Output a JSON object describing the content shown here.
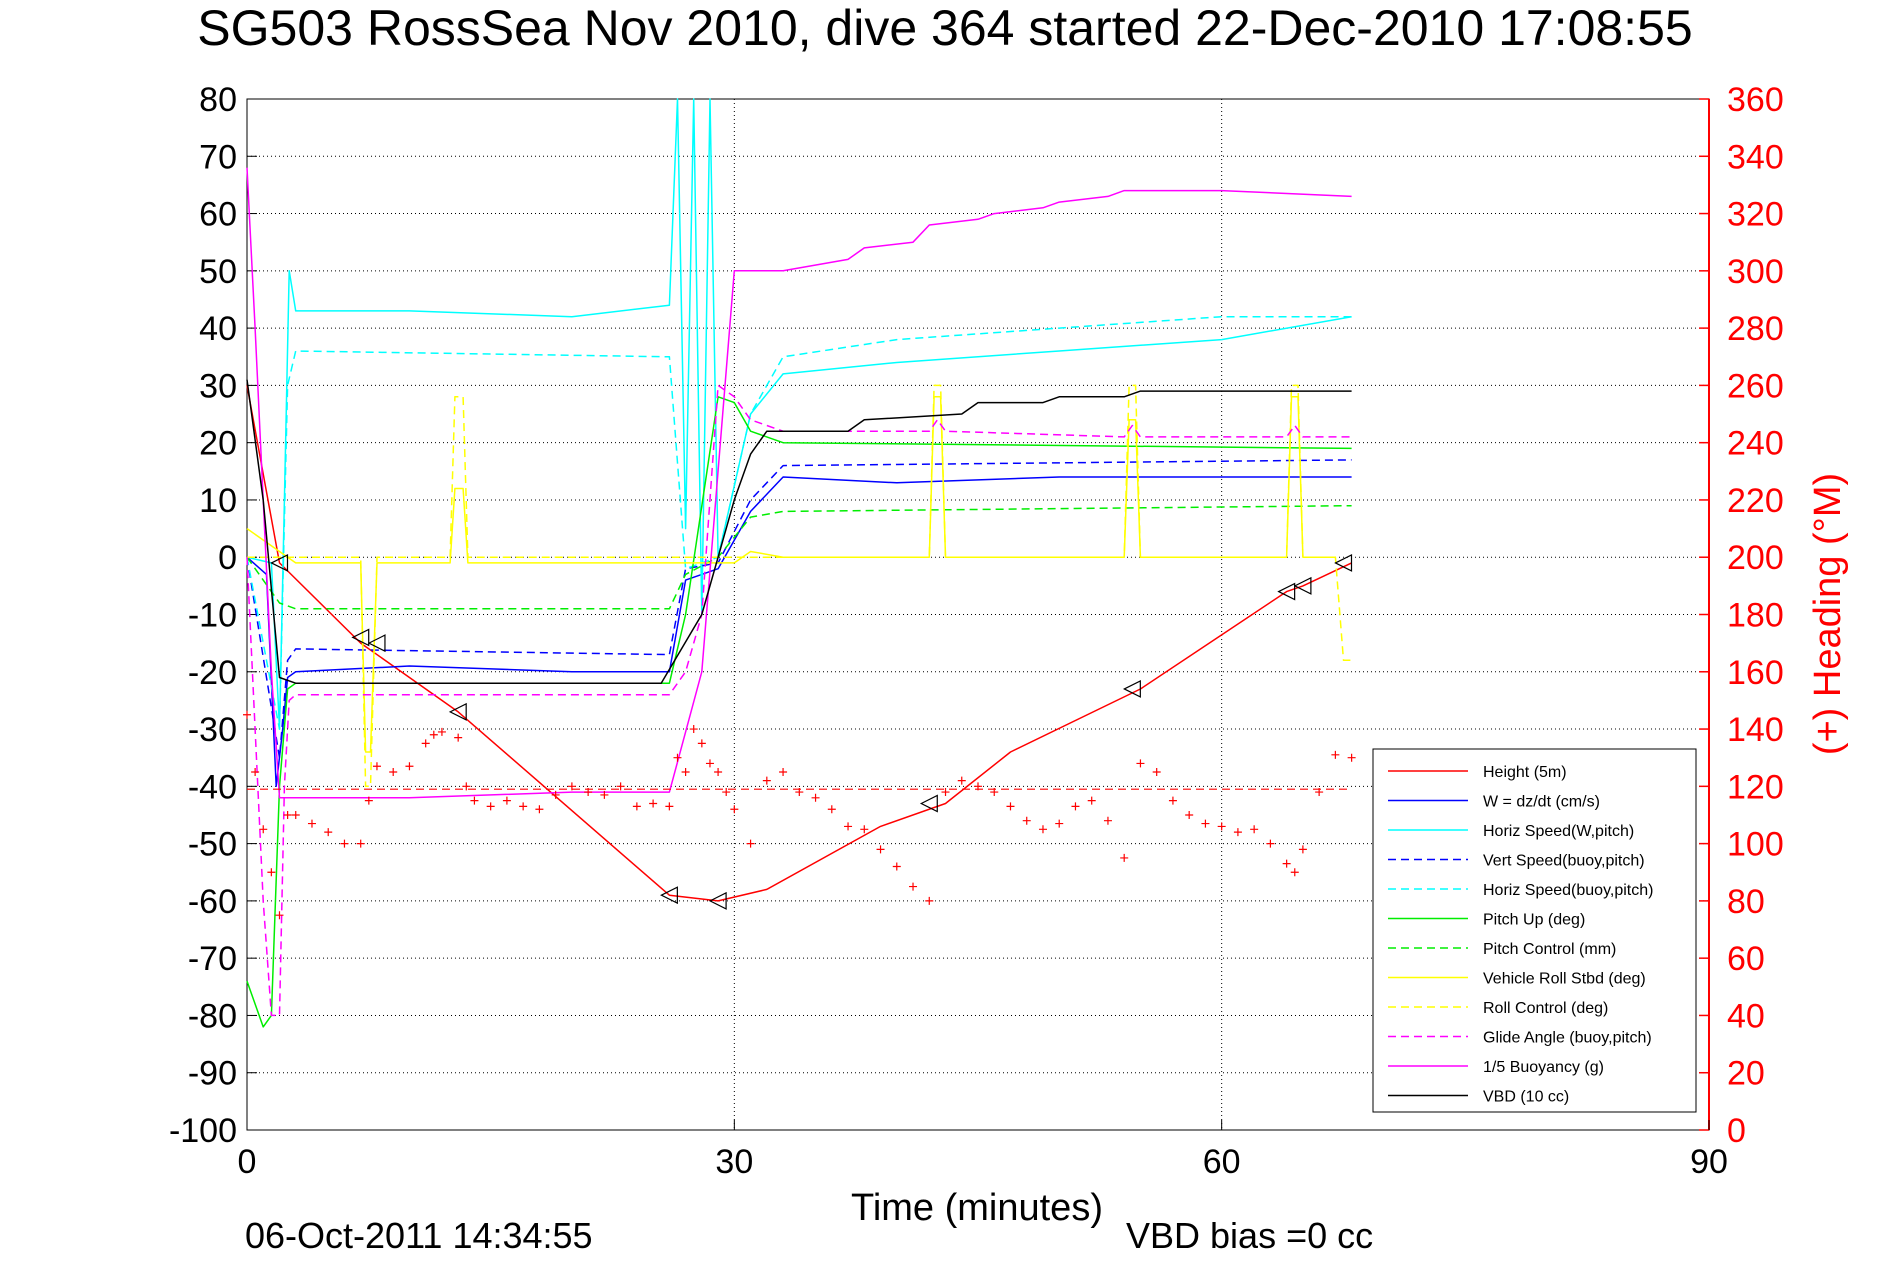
{
  "chart_data": {
    "type": "line",
    "title": "SG503 RossSea Nov 2010, dive 364 started 22-Dec-2010 17:08:55",
    "xlabel": "Time (minutes)",
    "ylabel_left": "",
    "ylabel_right": "(+) Heading (°M)",
    "footer_date": "06-Oct-2011 14:34:55",
    "footer_note": "VBD bias =0 cc",
    "xlim": [
      0,
      90
    ],
    "ylim": [
      -100,
      80
    ],
    "ylim_right": [
      0,
      360
    ],
    "xticks": [
      "0",
      "30",
      "60",
      "90"
    ],
    "yticks": [
      "80",
      "70",
      "60",
      "50",
      "40",
      "30",
      "20",
      "10",
      "0",
      "-10",
      "-20",
      "-30",
      "-40",
      "-50",
      "-60",
      "-70",
      "-80",
      "-90",
      "-100"
    ],
    "yticks_right": [
      "360",
      "340",
      "320",
      "300",
      "280",
      "260",
      "240",
      "220",
      "200",
      "180",
      "160",
      "140",
      "120",
      "100",
      "80",
      "60",
      "40",
      "20",
      "0"
    ],
    "grid": true,
    "legend_position": "bottom-right",
    "series": [
      {
        "name": "Height (5m)",
        "color": "#ff0000",
        "dash": "solid",
        "x": [
          0,
          2,
          7,
          13,
          26,
          29,
          32,
          39,
          43,
          47,
          55,
          64,
          65,
          68
        ],
        "y": [
          30,
          -1,
          -15,
          -27,
          -59,
          -60,
          -58,
          -47,
          -43,
          -34,
          -23,
          -6,
          -5,
          -1
        ]
      },
      {
        "name": "W = dz/dt (cm/s)",
        "color": "#0000ff",
        "dash": "solid",
        "x": [
          0,
          1.2,
          1.8,
          2.2,
          2.5,
          3,
          10,
          20,
          26,
          27,
          28,
          29,
          31,
          33,
          40,
          50,
          60,
          68
        ],
        "y": [
          0,
          -3,
          -40,
          -30,
          -21,
          -20,
          -19,
          -20,
          -20,
          -4,
          -3,
          -2,
          8,
          14,
          13,
          14,
          14,
          14
        ]
      },
      {
        "name": "Horiz Speed(W,pitch)",
        "color": "#00ffff",
        "dash": "solid",
        "x": [
          0,
          1.5,
          2,
          2.3,
          2.6,
          3,
          10,
          20,
          26,
          26.5,
          27,
          27.5,
          28,
          28.5,
          29,
          31,
          33,
          40,
          50,
          60,
          68
        ],
        "y": [
          0,
          -1,
          -30,
          10,
          50,
          43,
          43,
          42,
          44,
          80,
          5,
          80,
          -10,
          80,
          0,
          25,
          32,
          34,
          36,
          38,
          42
        ]
      },
      {
        "name": "Vert Speed(buoy,pitch)",
        "color": "#0000ff",
        "dash": "dashed",
        "x": [
          0,
          2,
          2.5,
          3,
          26,
          27,
          29,
          31,
          33,
          68
        ],
        "y": [
          0,
          -35,
          -18,
          -16,
          -17,
          -2,
          -1,
          10,
          16,
          17
        ]
      },
      {
        "name": "Horiz Speed(buoy,pitch)",
        "color": "#00ffff",
        "dash": "dashed",
        "x": [
          0,
          2,
          2.5,
          3,
          26,
          27,
          29,
          31,
          33,
          40,
          50,
          60,
          68
        ],
        "y": [
          0,
          -30,
          30,
          36,
          35,
          -2,
          0,
          25,
          35,
          38,
          40,
          42,
          42
        ]
      },
      {
        "name": "Pitch Up (deg)",
        "color": "#00ee00",
        "dash": "solid",
        "x": [
          0,
          0.5,
          1,
          1.5,
          2,
          2.5,
          3,
          10,
          20,
          26,
          27,
          29,
          30,
          31,
          33,
          68
        ],
        "y": [
          -74,
          -78,
          -82,
          -80,
          -40,
          -23,
          -22,
          -22,
          -22,
          -22,
          -10,
          28,
          27,
          22,
          20,
          19
        ]
      },
      {
        "name": "Pitch Control (mm)",
        "color": "#00ee00",
        "dash": "dashed",
        "x": [
          0,
          2,
          3,
          26,
          27,
          29,
          31,
          33,
          68
        ],
        "y": [
          0,
          -8,
          -9,
          -9,
          -3,
          0,
          7,
          8,
          9
        ]
      },
      {
        "name": "Vehicle Roll Stbd (deg)",
        "color": "#ffff00",
        "dash": "solid",
        "x": [
          0,
          2,
          3,
          7,
          7.3,
          7.6,
          8,
          12.5,
          12.8,
          13.3,
          13.6,
          20,
          26,
          28,
          30,
          31,
          33,
          42,
          42.3,
          42.7,
          43,
          54,
          54.3,
          54.7,
          55,
          64,
          64.3,
          64.7,
          65,
          67
        ],
        "y": [
          5,
          1,
          -1,
          -1,
          -34,
          -34,
          -1,
          -1,
          12,
          12,
          -1,
          -1,
          -1,
          -1,
          -1,
          1,
          0,
          0,
          28,
          28,
          0,
          0,
          24,
          24,
          0,
          0,
          28,
          28,
          0,
          0
        ]
      },
      {
        "name": "Roll Control (deg)",
        "color": "#ffff00",
        "dash": "dashed",
        "x": [
          0,
          2,
          3,
          7,
          7.3,
          7.6,
          8,
          12.5,
          12.8,
          13.3,
          13.6,
          26,
          28,
          30,
          33,
          42,
          42.3,
          42.7,
          43,
          54,
          54.3,
          54.7,
          55,
          64,
          64.3,
          64.7,
          65,
          67,
          67.5,
          68
        ],
        "y": [
          0,
          0,
          0,
          0,
          -40,
          -40,
          0,
          0,
          28,
          28,
          0,
          0,
          0,
          0,
          0,
          0,
          30,
          30,
          0,
          0,
          30,
          30,
          0,
          0,
          30,
          30,
          0,
          0,
          -18,
          -18
        ]
      },
      {
        "name": "Glide Angle (buoy,pitch)",
        "color": "#ff00ff",
        "dash": "dashed",
        "x": [
          0,
          1,
          1.5,
          2,
          2.3,
          2.6,
          3,
          10,
          20,
          26,
          27,
          28,
          29,
          30,
          31,
          33,
          42,
          42.5,
          43,
          54,
          54.5,
          55,
          64,
          64.5,
          65,
          68
        ],
        "y": [
          0,
          -60,
          -80,
          -80,
          -40,
          -25,
          -24,
          -24,
          -24,
          -24,
          -20,
          -10,
          30,
          28,
          24,
          22,
          22,
          24,
          22,
          21,
          23,
          21,
          21,
          23,
          21,
          21
        ]
      },
      {
        "name": "1/5 Buoyancy (g)",
        "color": "#ff00ff",
        "dash": "solid",
        "x": [
          0,
          0.5,
          1,
          1.5,
          2,
          3,
          10,
          20,
          26,
          28,
          30,
          31,
          33,
          37,
          38,
          41,
          42,
          45,
          46,
          49,
          50,
          53,
          54,
          60,
          68
        ],
        "y": [
          68,
          40,
          10,
          -20,
          -42,
          -42,
          -42,
          -41,
          -41,
          -20,
          50,
          50,
          50,
          52,
          54,
          55,
          58,
          59,
          60,
          61,
          62,
          63,
          64,
          64,
          63
        ]
      },
      {
        "name": "VBD (10 cc)",
        "color": "#000000",
        "dash": "solid",
        "x": [
          0,
          1,
          2,
          3,
          10,
          20,
          25.5,
          28,
          29,
          30,
          31,
          32,
          33,
          37,
          38,
          44,
          45,
          49,
          50,
          54,
          55,
          68
        ],
        "y": [
          31,
          10,
          -21,
          -22,
          -22,
          -22,
          -22,
          -10,
          0,
          10,
          18,
          22,
          22,
          22,
          24,
          25,
          27,
          27,
          28,
          28,
          29,
          29
        ]
      }
    ],
    "heading_series": {
      "name": "(+) Heading (°M)",
      "color": "#ff0000",
      "marker": "+",
      "reference_heading": 119,
      "x": [
        0,
        0.5,
        1,
        1.5,
        2,
        2.5,
        3,
        4,
        5,
        6,
        7,
        7.5,
        8,
        9,
        10,
        11,
        11.5,
        12,
        13,
        13.5,
        14,
        15,
        16,
        17,
        18,
        19,
        20,
        21,
        22,
        23,
        24,
        25,
        26,
        26.5,
        27,
        27.5,
        28,
        28.5,
        29,
        29.5,
        30,
        31,
        32,
        33,
        34,
        35,
        36,
        37,
        38,
        39,
        40,
        41,
        42,
        43,
        44,
        45,
        46,
        47,
        48,
        49,
        50,
        51,
        52,
        53,
        54,
        55,
        56,
        57,
        58,
        59,
        60,
        61,
        62,
        63,
        64,
        64.5,
        65,
        66,
        67,
        68
      ],
      "y": [
        145,
        125,
        105,
        90,
        75,
        110,
        110,
        107,
        104,
        100,
        100,
        115,
        127,
        125,
        127,
        135,
        138,
        139,
        137,
        120,
        115,
        113,
        115,
        113,
        112,
        117,
        120,
        118,
        117,
        120,
        113,
        114,
        113,
        130,
        125,
        140,
        135,
        128,
        125,
        118,
        112,
        100,
        122,
        125,
        118,
        116,
        112,
        106,
        105,
        98,
        92,
        85,
        80,
        118,
        122,
        120,
        118,
        113,
        108,
        105,
        107,
        113,
        115,
        108,
        95,
        128,
        125,
        115,
        110,
        107,
        106,
        104,
        105,
        100,
        93,
        90,
        98,
        118,
        131,
        130
      ]
    },
    "markers": {
      "triangles_x": [
        2,
        7,
        8,
        13,
        26,
        29,
        42,
        54.5,
        64,
        65,
        67.5
      ],
      "triangles_y": [
        -1,
        -14,
        -15,
        -27,
        -59,
        -60,
        -43,
        -23,
        -6,
        -5,
        -1
      ]
    }
  }
}
